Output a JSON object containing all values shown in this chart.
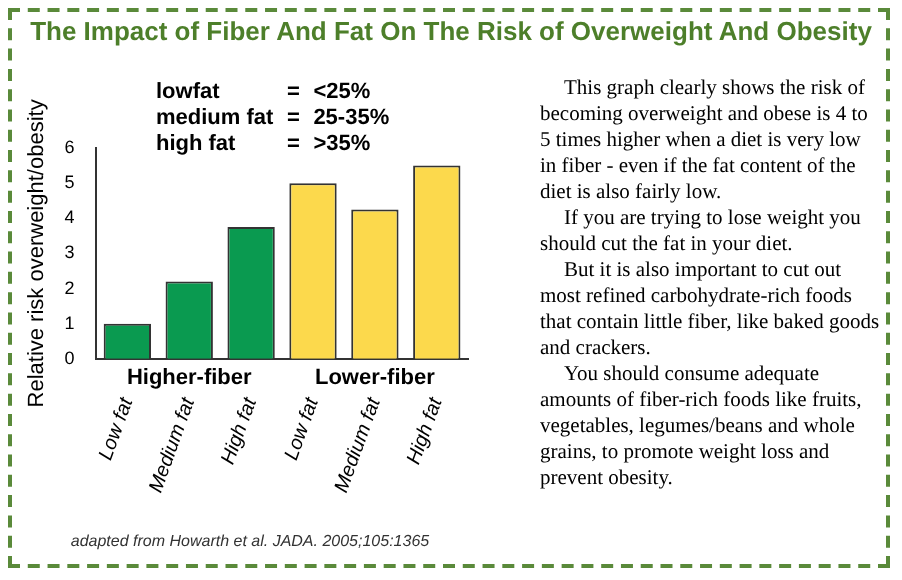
{
  "chart_data": {
    "type": "bar",
    "title": "The Impact of Fiber And Fat On The Risk of Overweight And Obesity",
    "ylabel": "Relative risk overweight/obesity",
    "categories": [
      "Low fat",
      "Medium fat",
      "High fat",
      "Low fat",
      "Medium fat",
      "High fat"
    ],
    "values": [
      1.0,
      2.2,
      3.75,
      5.0,
      4.25,
      5.5
    ],
    "colors": [
      "#0a9a50",
      "#0a9a50",
      "#0a9a50",
      "#fcd94c",
      "#fcd94c",
      "#fcd94c"
    ],
    "ylim": [
      0,
      6
    ],
    "yticks": [
      0,
      1,
      2,
      3,
      4,
      5,
      6
    ],
    "grid": false,
    "legend": false,
    "annotations": [
      "lowfat = <25%",
      "medium fat = 25-35%",
      "high fat = >35%",
      "Higher-fiber",
      "Lower-fiber",
      "adapted from Howarth et al. JADA. 2005;105:1365",
      "This graph clearly shows the risk of becoming overweight and obese is 4 to 5 times higher when a diet is very low in fiber - even if the fat content of the diet is also fairly low.",
      "If you are trying to lose weight you should cut the fat in your diet.",
      "But it is also important to cut out most refined carbohydrate-rich foods that contain little fiber, like baked goods and crackers.",
      "You should consume adequate amounts of fiber-rich foods like fruits, vegetables, legumes/beans and whole grains, to promote weight loss and prevent obesity."
    ]
  }
}
